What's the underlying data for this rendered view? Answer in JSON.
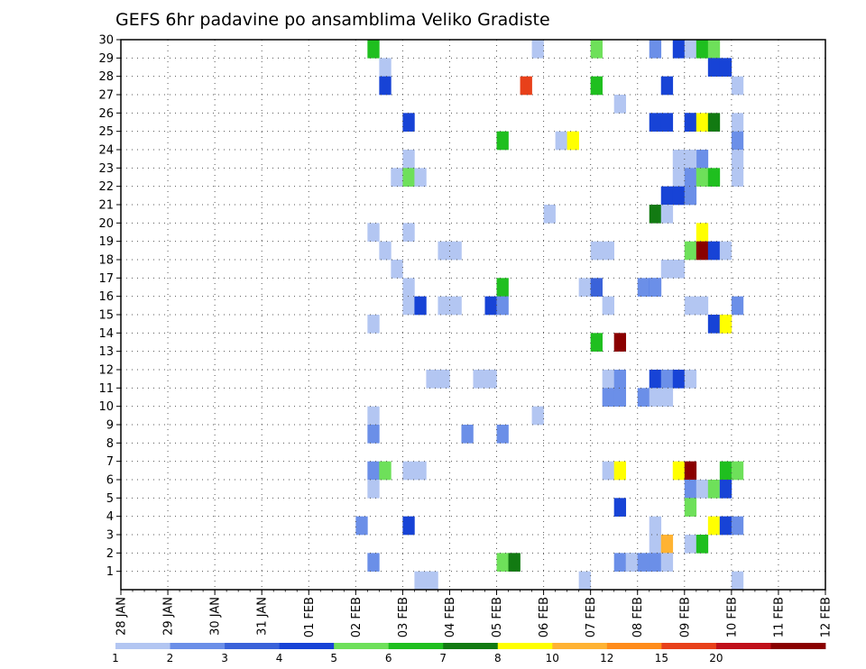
{
  "chart_data": {
    "type": "heatmap",
    "title": "GEFS 6hr padavine po ansamblima Veliko Gradiste",
    "xlabel": "",
    "ylabel": "",
    "x_tick_labels": [
      "28 JAN",
      "29 JAN",
      "30 JAN",
      "31 JAN",
      "01 FEB",
      "02 FEB",
      "03 FEB",
      "04 FEB",
      "05 FEB",
      "06 FEB",
      "07 FEB",
      "08 FEB",
      "09 FEB",
      "10 FEB",
      "11 FEB",
      "12 FEB"
    ],
    "xlim_steps": [
      0,
      60
    ],
    "y_tick_labels": [
      "1",
      "2",
      "3",
      "4",
      "5",
      "6",
      "7",
      "8",
      "9",
      "10",
      "11",
      "12",
      "13",
      "14",
      "15",
      "16",
      "17",
      "18",
      "19",
      "20",
      "21",
      "22",
      "23",
      "24",
      "25",
      "26",
      "27",
      "28",
      "29",
      "30"
    ],
    "ylim": [
      0,
      30
    ],
    "grid": true,
    "legend_placement": "bottom",
    "legend": {
      "colors": [
        "#b3c6f2",
        "#6b8fe8",
        "#3a62d9",
        "#1743d6",
        "#6ee05a",
        "#1fbf1f",
        "#127a12",
        "#ffff00",
        "#ffb333",
        "#ff8c1a",
        "#e8401a",
        "#c0101a",
        "#8a0000"
      ],
      "labels": [
        "1",
        "2",
        "3",
        "4",
        "5",
        "6",
        "7",
        "8",
        "10",
        "12",
        "15",
        "20"
      ]
    },
    "bins": [
      "1",
      "2",
      "3",
      "4",
      "5",
      "6",
      "7",
      "8",
      "10",
      "12",
      "15",
      "20",
      "20+"
    ],
    "cells": [
      [
        21,
        29,
        5
      ],
      [
        35,
        29,
        0
      ],
      [
        40,
        29,
        4
      ],
      [
        45,
        29,
        1
      ],
      [
        47,
        29,
        3
      ],
      [
        48,
        29,
        0
      ],
      [
        49,
        29,
        5
      ],
      [
        50,
        29,
        4
      ],
      [
        22,
        28,
        0
      ],
      [
        50,
        28,
        3
      ],
      [
        51,
        28,
        3
      ],
      [
        22,
        27,
        3
      ],
      [
        34,
        27,
        10
      ],
      [
        40,
        27,
        5
      ],
      [
        46,
        27,
        3
      ],
      [
        52,
        27,
        0
      ],
      [
        42,
        26,
        0
      ],
      [
        24,
        25,
        3
      ],
      [
        45,
        25,
        3
      ],
      [
        46,
        25,
        3
      ],
      [
        48,
        25,
        3
      ],
      [
        48,
        25,
        3
      ],
      [
        49,
        25,
        7
      ],
      [
        50,
        25,
        6
      ],
      [
        52,
        25,
        0
      ],
      [
        32,
        24,
        5
      ],
      [
        37,
        24,
        0
      ],
      [
        38,
        24,
        7
      ],
      [
        52,
        24,
        1
      ],
      [
        24,
        23,
        0
      ],
      [
        49,
        23,
        1
      ],
      [
        48,
        23,
        0
      ],
      [
        47,
        23,
        0
      ],
      [
        52,
        23,
        0
      ],
      [
        23,
        22,
        0
      ],
      [
        23,
        22,
        0
      ],
      [
        24,
        22,
        1
      ],
      [
        24,
        22,
        4
      ],
      [
        25,
        22,
        0
      ],
      [
        47,
        22,
        0
      ],
      [
        48,
        22,
        1
      ],
      [
        49,
        22,
        4
      ],
      [
        50,
        22,
        5
      ],
      [
        52,
        22,
        0
      ],
      [
        46,
        21,
        3
      ],
      [
        47,
        21,
        3
      ],
      [
        48,
        21,
        1
      ],
      [
        36,
        20,
        0
      ],
      [
        45,
        20,
        6
      ],
      [
        46,
        20,
        0
      ],
      [
        21,
        19,
        0
      ],
      [
        24,
        19,
        0
      ],
      [
        49,
        19,
        7
      ],
      [
        22,
        18,
        0
      ],
      [
        27,
        18,
        0
      ],
      [
        28,
        18,
        0
      ],
      [
        40,
        18,
        0
      ],
      [
        41,
        18,
        0
      ],
      [
        48,
        18,
        4
      ],
      [
        49,
        18,
        12
      ],
      [
        50,
        18,
        3
      ],
      [
        51,
        18,
        0
      ],
      [
        23,
        17,
        0
      ],
      [
        46,
        17,
        0
      ],
      [
        47,
        17,
        0
      ],
      [
        24,
        16,
        0
      ],
      [
        32,
        16,
        5
      ],
      [
        39,
        16,
        0
      ],
      [
        40,
        16,
        2
      ],
      [
        44,
        16,
        1
      ],
      [
        45,
        16,
        3
      ],
      [
        45,
        16,
        1
      ],
      [
        24,
        15,
        0
      ],
      [
        25,
        15,
        3
      ],
      [
        27,
        15,
        0
      ],
      [
        28,
        15,
        0
      ],
      [
        31,
        15,
        3
      ],
      [
        32,
        15,
        1
      ],
      [
        41,
        15,
        0
      ],
      [
        48,
        15,
        0
      ],
      [
        49,
        15,
        0
      ],
      [
        52,
        15,
        1
      ],
      [
        21,
        14,
        0
      ],
      [
        50,
        14,
        3
      ],
      [
        51,
        14,
        8
      ],
      [
        51,
        14,
        7
      ],
      [
        40,
        13,
        5
      ],
      [
        42,
        13,
        12
      ],
      [
        26,
        11,
        0
      ],
      [
        27,
        11,
        0
      ],
      [
        30,
        11,
        0
      ],
      [
        31,
        11,
        0
      ],
      [
        41,
        11,
        0
      ],
      [
        42,
        11,
        1
      ],
      [
        45,
        11,
        3
      ],
      [
        46,
        11,
        1
      ],
      [
        47,
        11,
        3
      ],
      [
        48,
        11,
        0
      ],
      [
        41,
        10,
        1
      ],
      [
        42,
        10,
        1
      ],
      [
        44,
        10,
        1
      ],
      [
        45,
        10,
        0
      ],
      [
        46,
        10,
        0
      ],
      [
        21,
        9,
        0
      ],
      [
        35,
        9,
        0
      ],
      [
        21,
        8,
        1
      ],
      [
        29,
        8,
        1
      ],
      [
        32,
        8,
        1
      ],
      [
        21,
        6,
        1
      ],
      [
        22,
        6,
        4
      ],
      [
        24,
        6,
        0
      ],
      [
        25,
        6,
        0
      ],
      [
        41,
        6,
        0
      ],
      [
        42,
        6,
        7
      ],
      [
        47,
        6,
        7
      ],
      [
        48,
        6,
        12
      ],
      [
        51,
        6,
        5
      ],
      [
        52,
        6,
        4
      ],
      [
        21,
        5,
        0
      ],
      [
        48,
        5,
        1
      ],
      [
        49,
        5,
        0
      ],
      [
        50,
        5,
        4
      ],
      [
        51,
        5,
        0
      ],
      [
        51,
        5,
        3
      ],
      [
        42,
        4,
        3
      ],
      [
        48,
        4,
        4
      ],
      [
        20,
        3,
        1
      ],
      [
        24,
        3,
        3
      ],
      [
        45,
        3,
        0
      ],
      [
        50,
        3,
        7
      ],
      [
        51,
        3,
        0
      ],
      [
        51,
        3,
        3
      ],
      [
        52,
        3,
        1
      ],
      [
        45,
        2,
        0
      ],
      [
        46,
        2,
        8
      ],
      [
        48,
        2,
        0
      ],
      [
        49,
        2,
        5
      ],
      [
        21,
        1,
        1
      ],
      [
        32,
        1,
        4
      ],
      [
        33,
        1,
        6
      ],
      [
        42,
        1,
        1
      ],
      [
        43,
        1,
        1
      ],
      [
        43,
        1,
        0
      ],
      [
        44,
        1,
        1
      ],
      [
        45,
        1,
        1
      ],
      [
        46,
        1,
        0
      ],
      [
        25,
        0,
        0
      ],
      [
        26,
        0,
        0
      ],
      [
        39,
        0,
        0
      ],
      [
        52,
        0,
        0
      ]
    ]
  }
}
